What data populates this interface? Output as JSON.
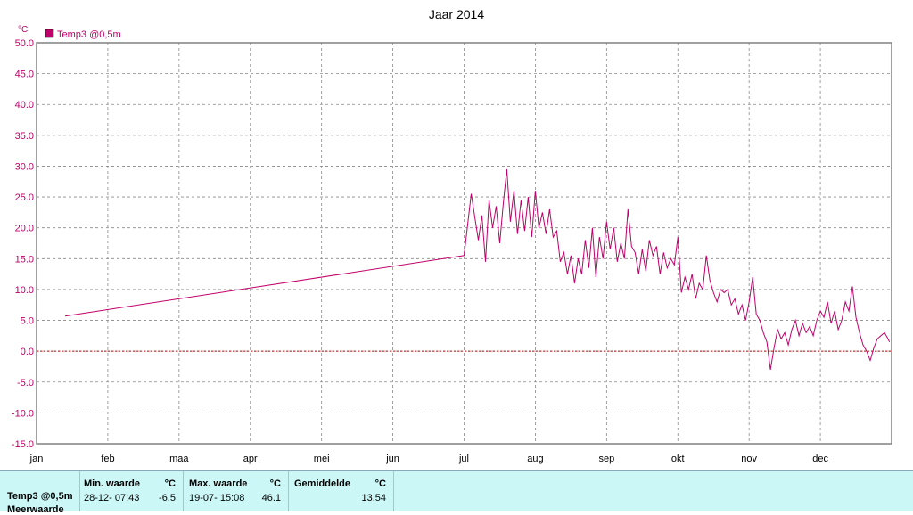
{
  "chart_data": {
    "type": "line",
    "title": "Jaar 2014",
    "y_unit": "°C",
    "ylim": [
      -15,
      50
    ],
    "y_ticks": [
      "50.0",
      "45.0",
      "40.0",
      "35.0",
      "30.0",
      "25.0",
      "20.0",
      "15.0",
      "10.0",
      "5.0",
      "0.0",
      "-5.0",
      "-10.0",
      "-15.0"
    ],
    "x_ticks": [
      "jan",
      "feb",
      "maa",
      "apr",
      "mei",
      "jun",
      "jul",
      "aug",
      "sep",
      "okt",
      "nov",
      "dec"
    ],
    "grid": true,
    "legend_placement": "top-left",
    "series": [
      {
        "name": "Temp3 @0,5m",
        "color": "#c0006a",
        "x": [
          0.4,
          6.0,
          6.1,
          6.2,
          6.25,
          6.3,
          6.35,
          6.4,
          6.45,
          6.5,
          6.55,
          6.6,
          6.65,
          6.7,
          6.75,
          6.8,
          6.85,
          6.9,
          6.95,
          7.0,
          7.05,
          7.1,
          7.15,
          7.2,
          7.25,
          7.3,
          7.35,
          7.4,
          7.45,
          7.5,
          7.55,
          7.6,
          7.65,
          7.7,
          7.75,
          7.8,
          7.85,
          7.9,
          7.95,
          8.0,
          8.05,
          8.1,
          8.15,
          8.2,
          8.25,
          8.3,
          8.35,
          8.4,
          8.45,
          8.5,
          8.55,
          8.6,
          8.65,
          8.7,
          8.75,
          8.8,
          8.85,
          8.9,
          8.95,
          9.0,
          9.05,
          9.1,
          9.15,
          9.2,
          9.25,
          9.3,
          9.35,
          9.4,
          9.45,
          9.5,
          9.55,
          9.6,
          9.65,
          9.7,
          9.75,
          9.8,
          9.85,
          9.9,
          9.95,
          10.0,
          10.05,
          10.1,
          10.15,
          10.2,
          10.25,
          10.3,
          10.35,
          10.4,
          10.45,
          10.5,
          10.55,
          10.6,
          10.65,
          10.7,
          10.75,
          10.8,
          10.85,
          10.9,
          10.95,
          11.0,
          11.05,
          11.1,
          11.15,
          11.2,
          11.25,
          11.3,
          11.35,
          11.4,
          11.45,
          11.5,
          11.55,
          11.6,
          11.65,
          11.7,
          11.75,
          11.8,
          11.85,
          11.9,
          11.95,
          11.97
        ],
        "values": [
          5.7,
          15.5,
          25.5,
          18.0,
          22.0,
          14.5,
          24.5,
          20.0,
          23.5,
          17.5,
          24.0,
          29.5,
          21.0,
          26.0,
          19.0,
          24.5,
          19.5,
          25.0,
          18.5,
          26.0,
          20.0,
          22.5,
          19.0,
          23.0,
          18.5,
          19.5,
          14.5,
          16.0,
          12.5,
          15.5,
          11.0,
          15.0,
          12.5,
          18.0,
          13.5,
          20.0,
          12.0,
          18.5,
          15.0,
          21.0,
          16.5,
          20.0,
          14.5,
          17.5,
          15.0,
          23.0,
          17.0,
          16.0,
          12.5,
          16.5,
          13.0,
          18.0,
          15.5,
          17.0,
          12.5,
          16.0,
          13.5,
          15.0,
          14.0,
          18.5,
          9.5,
          12.0,
          10.0,
          12.5,
          8.5,
          11.0,
          10.0,
          15.5,
          11.5,
          9.5,
          8.0,
          10.0,
          9.5,
          10.0,
          7.5,
          8.5,
          6.0,
          7.5,
          5.0,
          8.0,
          12.0,
          6.0,
          5.0,
          3.0,
          1.5,
          -3.0,
          0.5,
          3.5,
          2.0,
          3.0,
          1.0,
          3.5,
          5.0,
          2.5,
          4.5,
          3.0,
          4.0,
          2.5,
          5.0,
          6.5,
          5.5,
          8.0,
          4.5,
          6.5,
          3.5,
          5.0,
          8.0,
          6.5,
          10.5,
          5.5,
          3.0,
          1.0,
          0.0,
          -1.5,
          0.5,
          2.0,
          2.5,
          3.0,
          2.0,
          1.5
        ]
      }
    ],
    "reference_line": {
      "value": 0,
      "color": "#cc0000"
    }
  },
  "stats": {
    "series_label": "Temp3 @0,5m",
    "second_label": "Meerwaarde",
    "min_header": "Min. waarde",
    "min_unit": "°C",
    "min_time": "28-12-  07:43",
    "min_value": "-6.5",
    "max_header": "Max. waarde",
    "max_unit": "°C",
    "max_time": "19-07-  15:08",
    "max_value": "46.1",
    "avg_header": "Gemiddelde",
    "avg_unit": "°C",
    "avg_value": "13.54"
  }
}
